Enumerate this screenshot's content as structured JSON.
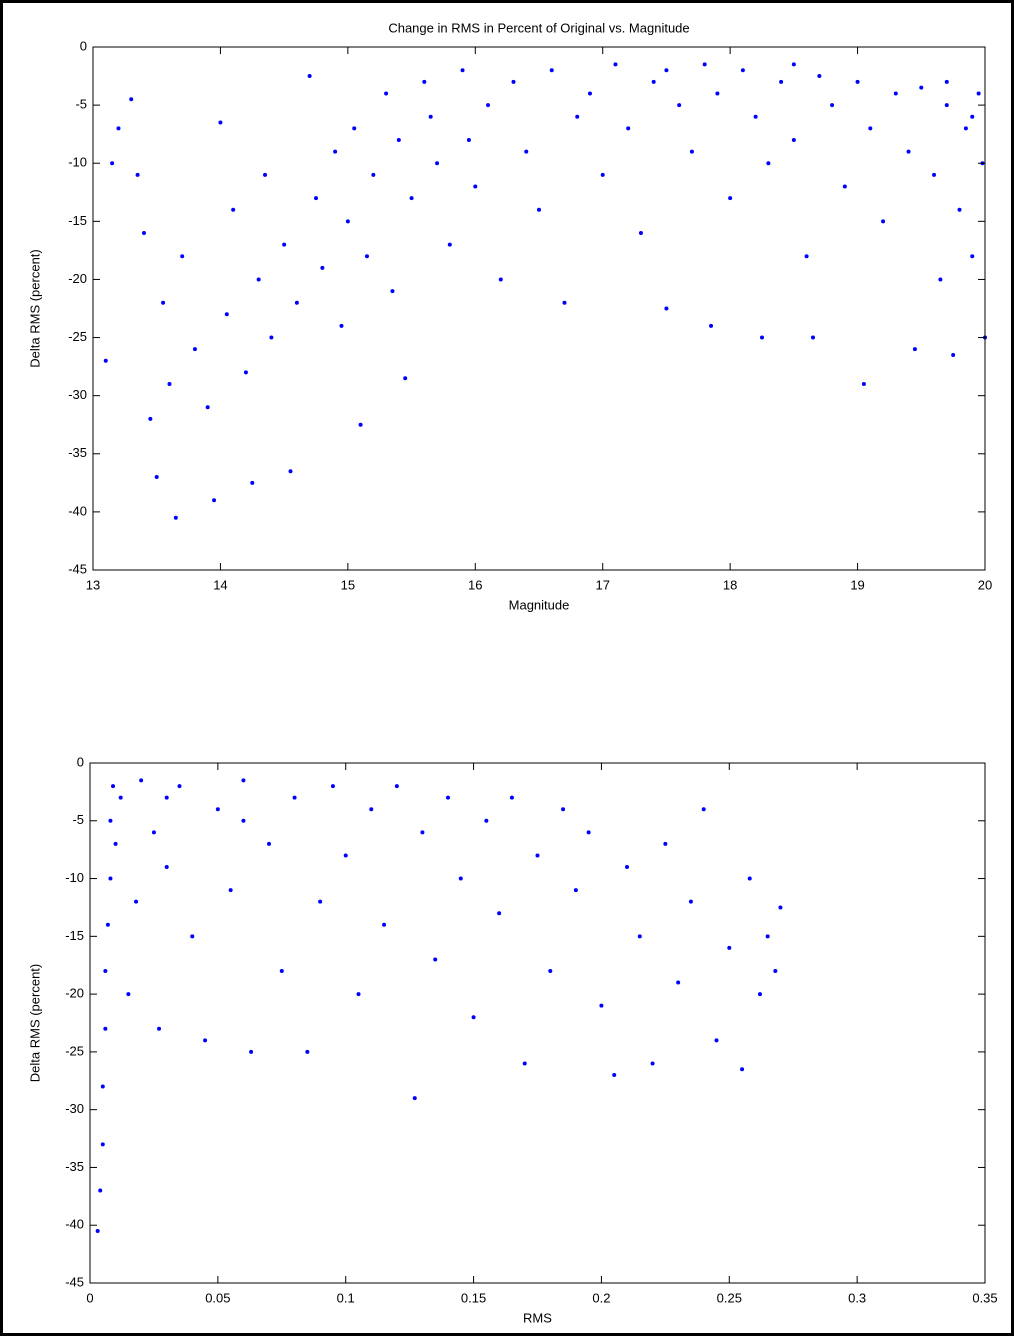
{
  "chart_data": [
    {
      "type": "scatter",
      "title": "Change in RMS in Percent of Original vs. Magnitude",
      "x_label": "Magnitude",
      "y_label": "Delta RMS (percent)",
      "color": "#0000ff",
      "xlim": [
        13,
        20
      ],
      "xticks": [
        13,
        14,
        15,
        16,
        17,
        18,
        19,
        20
      ],
      "ylim": [
        -45,
        0
      ],
      "yticks": [
        -45,
        -40,
        -35,
        -30,
        -25,
        -20,
        -15,
        -10,
        -5,
        0
      ],
      "x": [
        13.1,
        13.15,
        13.2,
        13.3,
        13.35,
        13.4,
        13.45,
        13.5,
        13.55,
        13.6,
        13.65,
        13.7,
        13.8,
        13.9,
        13.95,
        14.0,
        14.05,
        14.1,
        14.2,
        14.25,
        14.3,
        14.35,
        14.4,
        14.5,
        14.55,
        14.6,
        14.7,
        14.75,
        14.8,
        14.9,
        14.95,
        15.0,
        15.05,
        15.1,
        15.15,
        15.2,
        15.3,
        15.35,
        15.4,
        15.45,
        15.5,
        15.6,
        15.65,
        15.7,
        15.8,
        15.9,
        15.95,
        16.0,
        16.1,
        16.2,
        16.3,
        16.4,
        16.5,
        16.6,
        16.7,
        16.8,
        16.9,
        17.0,
        17.1,
        17.2,
        17.3,
        17.4,
        17.5,
        17.6,
        17.7,
        17.8,
        17.85,
        17.9,
        18.0,
        18.1,
        18.2,
        18.25,
        18.3,
        18.4,
        18.5,
        18.6,
        18.65,
        18.7,
        18.8,
        18.9,
        19.0,
        19.05,
        19.1,
        19.2,
        19.3,
        19.4,
        19.45,
        19.5,
        19.6,
        19.65,
        19.7,
        19.75,
        19.8,
        19.85,
        19.9,
        19.95,
        19.98,
        20.0,
        19.9,
        19.7,
        17.5,
        18.5
      ],
      "values": [
        -27,
        -10,
        -7,
        -4.5,
        -11,
        -16,
        -32,
        -37,
        -22,
        -29,
        -40.5,
        -18,
        -26,
        -31,
        -39,
        -6.5,
        -23,
        -14,
        -28,
        -37.5,
        -20,
        -11,
        -25,
        -17,
        -36.5,
        -22,
        -2.5,
        -13,
        -19,
        -9,
        -24,
        -15,
        -7,
        -32.5,
        -18,
        -11,
        -4,
        -21,
        -8,
        -28.5,
        -13,
        -3,
        -6,
        -10,
        -17,
        -2,
        -8,
        -12,
        -5,
        -20,
        -3,
        -9,
        -14,
        -2,
        -22,
        -6,
        -4,
        -11,
        -1.5,
        -7,
        -16,
        -3,
        -22.5,
        -5,
        -9,
        -1.5,
        -24,
        -4,
        -13,
        -2,
        -6,
        -25,
        -10,
        -3,
        -8,
        -18,
        -25,
        -2.5,
        -5,
        -12,
        -3,
        -29,
        -7,
        -15,
        -4,
        -9,
        -26,
        -3.5,
        -11,
        -20,
        -5,
        -26.5,
        -14,
        -7,
        -18,
        -4,
        -10,
        -25,
        -6,
        -3,
        -2,
        -1.5
      ]
    },
    {
      "type": "scatter",
      "x_label": "RMS",
      "y_label": "Delta RMS (percent)",
      "color": "#0000ff",
      "xlim": [
        0,
        0.35
      ],
      "xticks": [
        0,
        0.05,
        0.1,
        0.15,
        0.2,
        0.25,
        0.3,
        0.35
      ],
      "ylim": [
        -45,
        0
      ],
      "yticks": [
        -45,
        -40,
        -35,
        -30,
        -25,
        -20,
        -15,
        -10,
        -5,
        0
      ],
      "x": [
        0.003,
        0.004,
        0.005,
        0.005,
        0.006,
        0.006,
        0.007,
        0.008,
        0.008,
        0.009,
        0.01,
        0.012,
        0.015,
        0.018,
        0.02,
        0.025,
        0.027,
        0.03,
        0.035,
        0.04,
        0.045,
        0.05,
        0.055,
        0.06,
        0.063,
        0.07,
        0.075,
        0.08,
        0.085,
        0.09,
        0.095,
        0.1,
        0.105,
        0.11,
        0.115,
        0.12,
        0.127,
        0.13,
        0.135,
        0.14,
        0.145,
        0.15,
        0.155,
        0.16,
        0.165,
        0.17,
        0.175,
        0.18,
        0.185,
        0.19,
        0.195,
        0.2,
        0.205,
        0.21,
        0.215,
        0.22,
        0.225,
        0.23,
        0.235,
        0.24,
        0.245,
        0.25,
        0.255,
        0.258,
        0.262,
        0.265,
        0.27,
        0.268,
        0.06,
        0.03
      ],
      "values": [
        -40.5,
        -37,
        -33,
        -28,
        -23,
        -18,
        -14,
        -10,
        -5,
        -2,
        -7,
        -3,
        -20,
        -12,
        -1.5,
        -6,
        -23,
        -9,
        -2,
        -15,
        -24,
        -4,
        -11,
        -1.5,
        -25,
        -7,
        -18,
        -3,
        -25,
        -12,
        -2,
        -8,
        -20,
        -4,
        -14,
        -2,
        -29,
        -6,
        -17,
        -3,
        -10,
        -22,
        -5,
        -13,
        -3,
        -26,
        -8,
        -18,
        -4,
        -11,
        -6,
        -21,
        -27,
        -9,
        -15,
        -26,
        -7,
        -19,
        -12,
        -4,
        -24,
        -16,
        -26.5,
        -10,
        -20,
        -15,
        -12.5,
        -18,
        -5,
        -3
      ]
    }
  ]
}
